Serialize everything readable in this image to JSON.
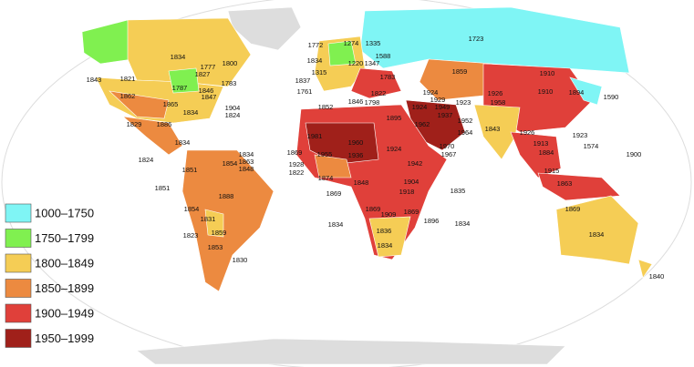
{
  "map": {
    "legend": [
      {
        "label": "1000–1750",
        "color": "#7ff5f5"
      },
      {
        "label": "1750–1799",
        "color": "#80f050"
      },
      {
        "label": "1800–1849",
        "color": "#f5cd55"
      },
      {
        "label": "1850–1899",
        "color": "#ec8a40"
      },
      {
        "label": "1900–1949",
        "color": "#e0403a"
      },
      {
        "label": "1950–1999",
        "color": "#a0201a"
      }
    ],
    "labels": [
      "1834",
      "1821",
      "1843",
      "1862",
      "1787",
      "1777",
      "1827",
      "1800",
      "1783",
      "1846",
      "1847",
      "1865",
      "1829",
      "1886",
      "1834",
      "1904",
      "1824",
      "1834",
      "1824",
      "1834",
      "1863",
      "1848",
      "1854",
      "1851",
      "1851",
      "1888",
      "1854",
      "1831",
      "1823",
      "1859",
      "1853",
      "1830",
      "1772",
      "1834",
      "1274",
      "1335",
      "1723",
      "1588",
      "1347",
      "1220",
      "1315",
      "1783",
      "1837",
      "1761",
      "1822",
      "1798",
      "1846",
      "1859",
      "1910",
      "1910",
      "1924",
      "1929",
      "1949",
      "1923",
      "1924",
      "1937",
      "1926",
      "1958",
      "1894",
      "1590",
      "1952",
      "1895",
      "1852",
      "1962",
      "1964",
      "1843",
      "1926",
      "1923",
      "1574",
      "1900",
      "1981",
      "1960",
      "1924",
      "1970",
      "1967",
      "1913",
      "1884",
      "1869",
      "1955",
      "1936",
      "1942",
      "1928",
      "1822",
      "1874",
      "1915",
      "1863",
      "1904",
      "1848",
      "1869",
      "1918",
      "1835",
      "1869",
      "1909",
      "1869",
      "1896",
      "1834",
      "1834",
      "1836",
      "1834",
      "1869",
      "1834",
      "1840"
    ]
  }
}
